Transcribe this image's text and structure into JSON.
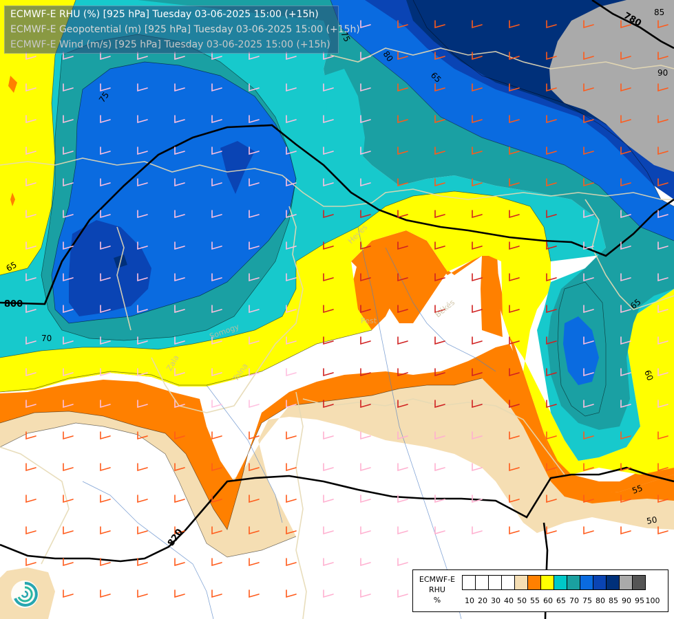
{
  "title": {
    "lines": [
      {
        "text": "ECMWF-E RHU (%) [925 hPa] Tuesday 03-06-2025 15:00 (+15h)",
        "color": "#ffffff"
      },
      {
        "text": "ECMWF-E Geopotential (m) [925 hPa] Tuesday 03-06-2025 15:00 (+15h)",
        "color": "#d8d8d8"
      },
      {
        "text": "ECMWF-E Wind (m/s) [925 hPa] Tuesday 03-06-2025 15:00 (+15h)",
        "color": "#c8c8c8"
      }
    ]
  },
  "legend": {
    "model": "ECMWF-E",
    "variable": "RHU",
    "unit": "%",
    "ticks": [
      "10",
      "20",
      "30",
      "40",
      "50",
      "55",
      "60",
      "65",
      "70",
      "75",
      "80",
      "85",
      "90",
      "95",
      "100"
    ],
    "colors": [
      "#ffffff",
      "#ffffff",
      "#ffffff",
      "#ffffff",
      "#ffffff",
      "#f5deb3",
      "#ff8000",
      "#ffff00",
      "#00c8c8",
      "#1aa0a0",
      "#0a6be0",
      "#0a44b4",
      "#00307a",
      "#aaaaaa",
      "#555555"
    ]
  },
  "rh_labels": [
    "75",
    "70",
    "65",
    "60",
    "55",
    "50",
    "80",
    "85",
    "90"
  ],
  "height_labels": [
    "800",
    "820",
    "780"
  ],
  "place_labels": [
    "Heves",
    "Pest",
    "Békés",
    "Somogy",
    "Tolna",
    "Zala"
  ],
  "logo": "ecmwf-swirl-icon"
}
